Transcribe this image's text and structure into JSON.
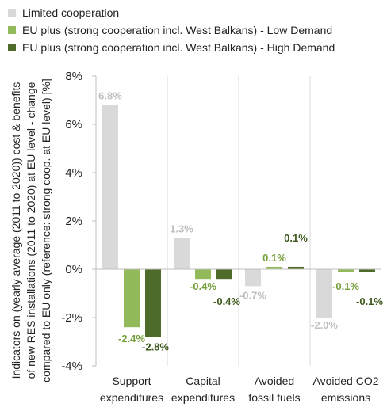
{
  "chart_data": {
    "type": "bar",
    "title": "",
    "ylabel": "Indicators on (yearly average (2011 to 2020)) cost & benefits of new RES installations (2011 to 2020) at EU level - change compared to EU only (reference: strong coop. at EU level) [%]",
    "ylabel_lines": [
      "Indicators on (yearly average (2011 to 2020)) cost & benefits",
      "of new RES installations (2011 to 2020) at EU level - change",
      "compared to EU only (reference: strong coop. at EU level) [%]"
    ],
    "xlabel": "",
    "ylim": [
      -4,
      8
    ],
    "yticks": [
      -4,
      -2,
      0,
      2,
      4,
      6,
      8
    ],
    "ytick_labels": [
      "-4%",
      "-2%",
      "0%",
      "2%",
      "4%",
      "6%",
      "8%"
    ],
    "categories": [
      "Support expenditures",
      "Capital expenditures",
      "Avoided fossil fuels",
      "Avoided CO2 emissions"
    ],
    "category_lines": [
      [
        "Support",
        "expenditures"
      ],
      [
        "Capital",
        "expenditures"
      ],
      [
        "Avoided",
        "fossil fuels"
      ],
      [
        "Avoided CO2",
        "emissions"
      ]
    ],
    "series": [
      {
        "name": "Limited cooperation",
        "color": "#d9d9d9",
        "label_color": "#bfbfbf",
        "values": [
          6.8,
          1.3,
          -0.7,
          -2.0
        ],
        "labels": [
          "6.8%",
          "1.3%",
          "-0.7%",
          "-2.0%"
        ]
      },
      {
        "name": "EU plus (strong cooperation incl. West Balkans) - Low Demand",
        "color": "#92b95a",
        "label_color": "#76a03d",
        "values": [
          -2.4,
          -0.4,
          0.1,
          -0.1
        ],
        "labels": [
          "-2.4%",
          "-0.4%",
          "0.1%",
          "-0.1%"
        ]
      },
      {
        "name": "EU plus (strong cooperation incl. West Balkans) - High Demand",
        "color": "#4e6b2a",
        "label_color": "#3f5a20",
        "values": [
          -2.8,
          -0.4,
          0.1,
          -0.1
        ],
        "labels": [
          "-2.8%",
          "-0.4%",
          "0.1%",
          "-0.1%"
        ]
      }
    ],
    "legend_position": "top",
    "grid": false,
    "category_separators": true
  }
}
